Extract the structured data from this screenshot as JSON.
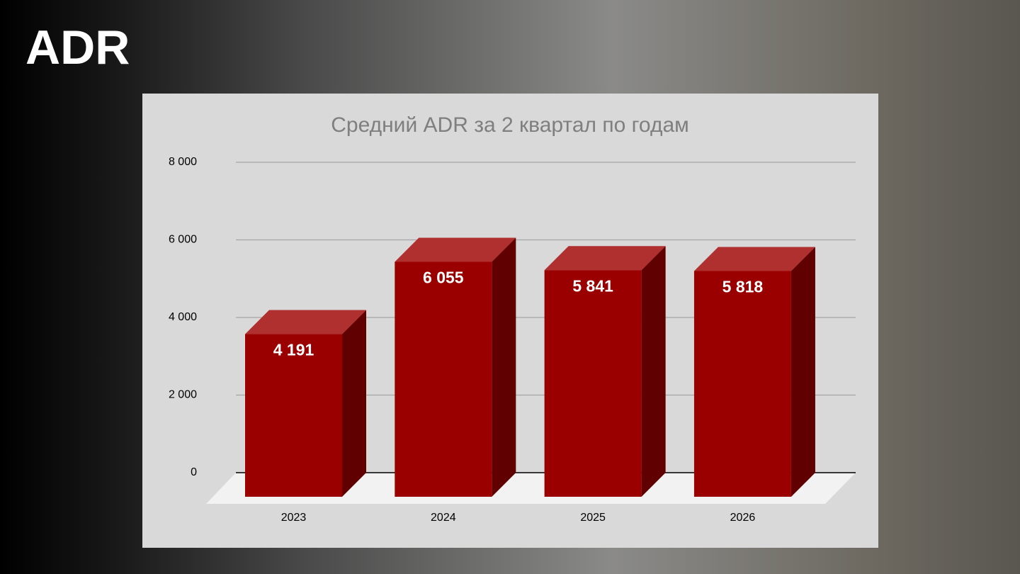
{
  "heading": "ADR",
  "chart_data": {
    "type": "bar3d",
    "title": "Средний ADR за 2 квартал по годам",
    "categories": [
      "2023",
      "2024",
      "2025",
      "2026"
    ],
    "values": [
      4191,
      6055,
      5841,
      5818
    ],
    "value_labels": [
      "4 191",
      "6 055",
      "5 841",
      "5 818"
    ],
    "color": "#9b0000",
    "ylim": [
      0,
      8000
    ],
    "yticks": [
      0,
      {
        "value": 2000,
        "label": "2 000"
      },
      {
        "value": 4000,
        "label": "4 000"
      },
      {
        "value": 6000,
        "label": "6 000"
      },
      {
        "value": 8000,
        "label": "8 000"
      }
    ],
    "grid": true
  }
}
